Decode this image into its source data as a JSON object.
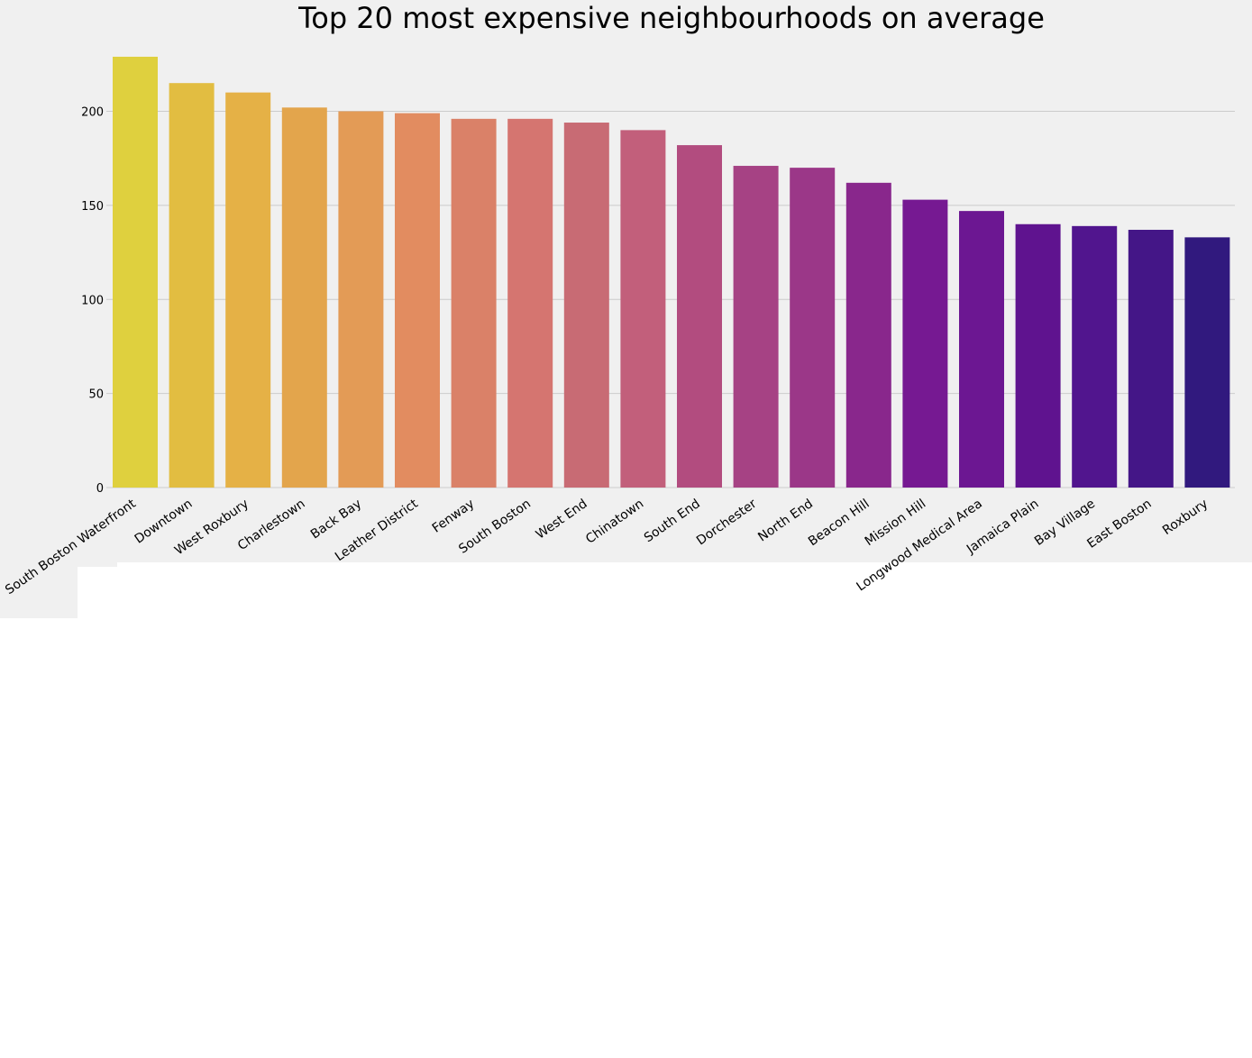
{
  "chart_data": {
    "type": "bar",
    "title": "Top 20 most expensive neighbourhoods on average",
    "xlabel": "",
    "ylabel": "",
    "ylim": [
      0,
      230
    ],
    "yticks": [
      0,
      50,
      100,
      150,
      200
    ],
    "grid": "y",
    "categories": [
      "South Boston Waterfront",
      "Downtown",
      "West Roxbury",
      "Charlestown",
      "Back Bay",
      "Leather District",
      "Fenway",
      "South Boston",
      "West End",
      "Chinatown",
      "South End",
      "Dorchester",
      "North End",
      "Beacon Hill",
      "Mission Hill",
      "Longwood Medical Area",
      "Jamaica Plain",
      "Bay Village",
      "East Boston",
      "Roxbury"
    ],
    "values": [
      229,
      215,
      210,
      202,
      200,
      199,
      196,
      196,
      194,
      190,
      182,
      171,
      170,
      162,
      153,
      147,
      140,
      139,
      137,
      133
    ],
    "colors": [
      "#dfd03e",
      "#e2bd41",
      "#e5b146",
      "#e3a54c",
      "#e39b56",
      "#e28c60",
      "#da8168",
      "#d57570",
      "#c86b74",
      "#c25f7b",
      "#b24c7f",
      "#a64284",
      "#9b3788",
      "#89278c",
      "#761992",
      "#6c1792",
      "#5f138f",
      "#51158e",
      "#441687",
      "#31197e"
    ]
  },
  "style": {
    "figure_background": "#f0f0f0",
    "page_background": "#ffffff",
    "gridline_color": "#cbcbcb"
  }
}
